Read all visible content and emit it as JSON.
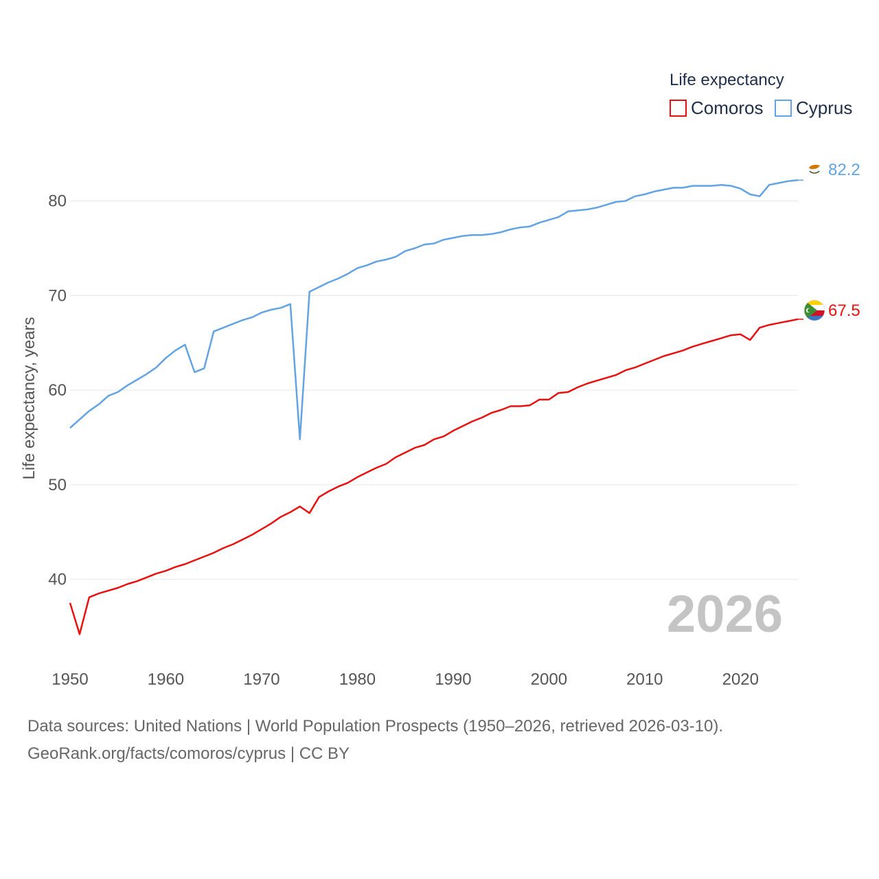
{
  "chart_data": {
    "type": "line",
    "title": "",
    "xlabel": "",
    "ylabel": "Life expectancy, years",
    "xlim": [
      1950,
      2026
    ],
    "ylim": [
      33,
      86
    ],
    "x_ticks": [
      1950,
      1960,
      1970,
      1980,
      1990,
      2000,
      2010,
      2020
    ],
    "y_ticks": [
      40,
      50,
      60,
      70,
      80
    ],
    "grid": true,
    "legend": {
      "title": "Life expectancy",
      "position": "top-right",
      "entries": [
        "Comoros",
        "Cyprus"
      ]
    },
    "watermark_year": "2026",
    "series": [
      {
        "name": "Comoros",
        "color": "#e8110f",
        "end_label": "67.5",
        "flag": "comoros-flag",
        "x": [
          1950,
          1951,
          1952,
          1953,
          1954,
          1955,
          1956,
          1957,
          1958,
          1959,
          1960,
          1961,
          1962,
          1963,
          1964,
          1965,
          1966,
          1967,
          1968,
          1969,
          1970,
          1971,
          1972,
          1973,
          1974,
          1975,
          1976,
          1977,
          1978,
          1979,
          1980,
          1981,
          1982,
          1983,
          1984,
          1985,
          1986,
          1987,
          1988,
          1989,
          1990,
          1991,
          1992,
          1993,
          1994,
          1995,
          1996,
          1997,
          1998,
          1999,
          2000,
          2001,
          2002,
          2003,
          2004,
          2005,
          2006,
          2007,
          2008,
          2009,
          2010,
          2011,
          2012,
          2013,
          2014,
          2015,
          2016,
          2017,
          2018,
          2019,
          2020,
          2021,
          2022,
          2023,
          2024,
          2025,
          2026
        ],
        "values": [
          37.5,
          34.2,
          38.1,
          38.5,
          38.8,
          39.1,
          39.5,
          39.8,
          40.2,
          40.6,
          40.9,
          41.3,
          41.6,
          42.0,
          42.4,
          42.8,
          43.3,
          43.7,
          44.2,
          44.7,
          45.3,
          45.9,
          46.6,
          47.1,
          47.7,
          47.0,
          48.7,
          49.3,
          49.8,
          50.2,
          50.8,
          51.3,
          51.8,
          52.2,
          52.9,
          53.4,
          53.9,
          54.2,
          54.8,
          55.1,
          55.7,
          56.2,
          56.7,
          57.1,
          57.6,
          57.9,
          58.3,
          58.3,
          58.4,
          59.0,
          59.0,
          59.7,
          59.8,
          60.3,
          60.7,
          61.0,
          61.3,
          61.6,
          62.1,
          62.4,
          62.8,
          63.2,
          63.6,
          63.9,
          64.2,
          64.6,
          64.9,
          65.2,
          65.5,
          65.8,
          65.9,
          65.3,
          66.6,
          66.9,
          67.1,
          67.3,
          67.5
        ]
      },
      {
        "name": "Cyprus",
        "color": "#62a3e3",
        "end_label": "82.2",
        "flag": "cyprus-flag",
        "x": [
          1950,
          1951,
          1952,
          1953,
          1954,
          1955,
          1956,
          1957,
          1958,
          1959,
          1960,
          1961,
          1962,
          1963,
          1964,
          1965,
          1966,
          1967,
          1968,
          1969,
          1970,
          1971,
          1972,
          1973,
          1974,
          1975,
          1976,
          1977,
          1978,
          1979,
          1980,
          1981,
          1982,
          1983,
          1984,
          1985,
          1986,
          1987,
          1988,
          1989,
          1990,
          1991,
          1992,
          1993,
          1994,
          1995,
          1996,
          1997,
          1998,
          1999,
          2000,
          2001,
          2002,
          2003,
          2004,
          2005,
          2006,
          2007,
          2008,
          2009,
          2010,
          2011,
          2012,
          2013,
          2014,
          2015,
          2016,
          2017,
          2018,
          2019,
          2020,
          2021,
          2022,
          2023,
          2024,
          2025,
          2026
        ],
        "values": [
          56.0,
          56.9,
          57.8,
          58.5,
          59.4,
          59.8,
          60.5,
          61.1,
          61.7,
          62.4,
          63.4,
          64.2,
          64.8,
          61.9,
          62.3,
          66.2,
          66.6,
          67.0,
          67.4,
          67.7,
          68.2,
          68.5,
          68.7,
          69.1,
          54.8,
          70.4,
          70.9,
          71.4,
          71.8,
          72.3,
          72.9,
          73.2,
          73.6,
          73.8,
          74.1,
          74.7,
          75.0,
          75.4,
          75.5,
          75.9,
          76.1,
          76.3,
          76.4,
          76.4,
          76.5,
          76.7,
          77.0,
          77.2,
          77.3,
          77.7,
          78.0,
          78.3,
          78.9,
          79.0,
          79.1,
          79.3,
          79.6,
          79.9,
          80.0,
          80.5,
          80.7,
          81.0,
          81.2,
          81.4,
          81.4,
          81.6,
          81.6,
          81.6,
          81.7,
          81.6,
          81.3,
          80.7,
          80.5,
          81.7,
          81.9,
          82.1,
          82.2
        ]
      }
    ]
  },
  "footer": {
    "source_line": "Data sources: United Nations | World Population Prospects (1950–2026, retrieved 2026-03-10).",
    "credit_line": "GeoRank.org/facts/comoros/cyprus | CC BY"
  }
}
